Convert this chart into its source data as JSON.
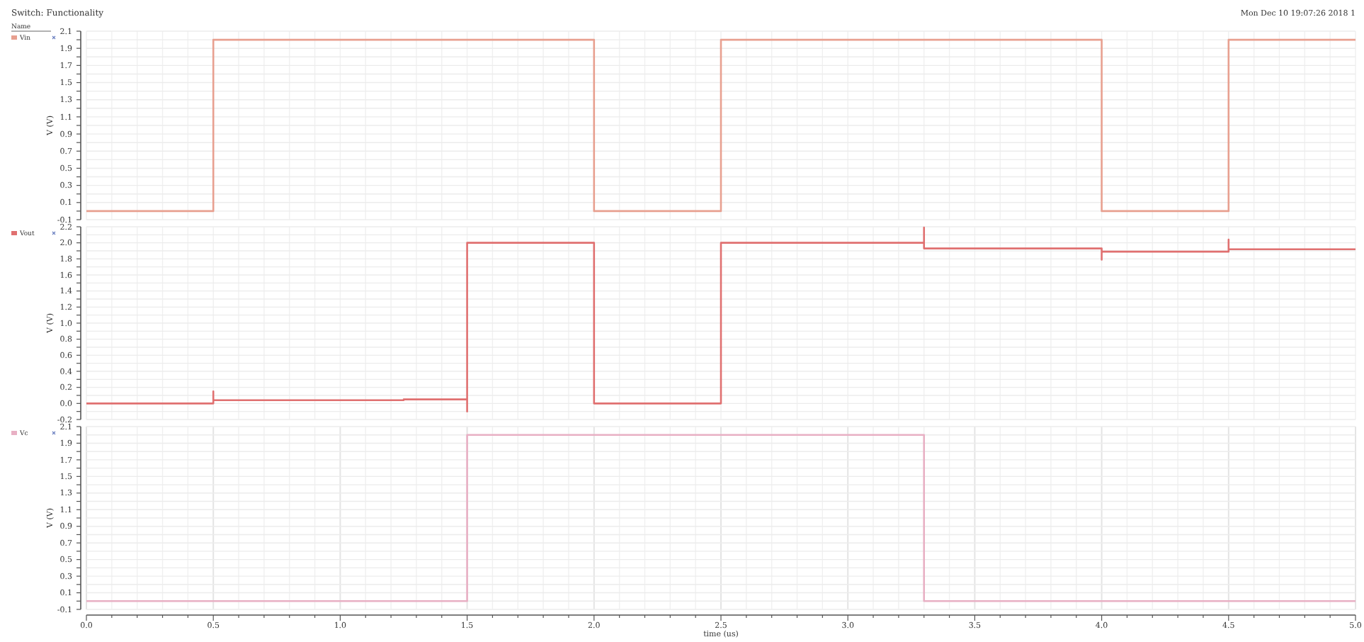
{
  "chart_data": [
    {
      "type": "line",
      "title": "Switch: Functionality",
      "annotations": [
        "Mon Dec 10 19:07:26 2018  1"
      ],
      "legend_title": "Name",
      "ylabel": "V (V)",
      "legend": "top left",
      "grid": true,
      "tick_labels": "y",
      "series": [
        {
          "name": "Vin",
          "color": "#e8a090",
          "x": [
            0,
            0.5,
            0.5,
            2,
            2,
            2.5,
            2.5,
            4,
            4,
            4.5,
            4.5,
            5
          ],
          "values": [
            0,
            0,
            2,
            2,
            0,
            0,
            2,
            2,
            0,
            0,
            2,
            2
          ]
        }
      ],
      "xlim": [
        0,
        5
      ],
      "xticks": [
        0,
        0.1,
        0.2,
        0.3,
        0.4,
        0.5,
        0.6,
        0.7,
        0.8,
        0.9,
        1,
        1.1,
        1.2,
        1.3,
        1.4,
        1.5,
        1.6,
        1.7,
        1.8,
        1.9,
        2,
        2.1,
        2.2,
        2.3,
        2.4,
        2.5,
        2.6,
        2.7,
        2.8,
        2.9,
        3,
        3.1,
        3.2,
        3.3,
        3.4,
        3.5,
        3.6,
        3.7,
        3.8,
        3.9,
        4,
        4.1,
        4.2,
        4.3,
        4.4,
        4.5,
        4.6,
        4.7,
        4.8,
        4.9,
        5
      ],
      "ylim": [
        -0.1,
        2.1
      ],
      "yticks": [
        -0.1,
        {
          "value": 0,
          "label": null
        },
        0.1,
        {
          "value": 0.2,
          "label": null
        },
        0.3,
        {
          "value": 0.4,
          "label": null
        },
        0.5,
        {
          "value": 0.6,
          "label": null
        },
        0.7,
        {
          "value": 0.8,
          "label": null
        },
        0.9,
        {
          "value": 1,
          "label": null
        },
        1.1,
        {
          "value": 1.2,
          "label": null
        },
        1.3,
        {
          "value": 1.4,
          "label": null
        },
        1.5,
        {
          "value": 1.6,
          "label": null
        },
        1.7,
        {
          "value": 1.8,
          "label": null
        },
        1.9,
        {
          "value": 2,
          "label": null
        },
        2.1
      ]
    },
    {
      "type": "line",
      "ylabel": "V (V)",
      "legend": "top left",
      "grid": true,
      "tick_labels": "y",
      "series": [
        {
          "name": "Vout",
          "color": "#e07070",
          "x": [
            0,
            0.5,
            0.5,
            0.5,
            1.25,
            1.25,
            1.5,
            1.5,
            1.5,
            2,
            2,
            2.5,
            2.5,
            3.3,
            3.3,
            3.3,
            4,
            4,
            4,
            4.5,
            4.5,
            4.5,
            5
          ],
          "values": [
            0,
            0,
            0.15,
            0.04,
            0.04,
            0.05,
            0.05,
            -0.1,
            2,
            2,
            0,
            0,
            2,
            2,
            2.19,
            1.93,
            1.93,
            1.79,
            1.89,
            1.89,
            2.04,
            1.92,
            1.92
          ]
        }
      ],
      "xlim": [
        0,
        5
      ],
      "xticks": [
        0,
        0.1,
        0.2,
        0.3,
        0.4,
        0.5,
        0.6,
        0.7,
        0.8,
        0.9,
        1,
        1.1,
        1.2,
        1.3,
        1.4,
        1.5,
        1.6,
        1.7,
        1.8,
        1.9,
        2,
        2.1,
        2.2,
        2.3,
        2.4,
        2.5,
        2.6,
        2.7,
        2.8,
        2.9,
        3,
        3.1,
        3.2,
        3.3,
        3.4,
        3.5,
        3.6,
        3.7,
        3.8,
        3.9,
        4,
        4.1,
        4.2,
        4.3,
        4.4,
        4.5,
        4.6,
        4.7,
        4.8,
        4.9,
        5
      ],
      "ylim": [
        -0.2,
        2.2
      ],
      "yticks": [
        -0.2,
        {
          "value": -0.1,
          "label": null
        },
        {
          "value": 0,
          "label": "0.0"
        },
        {
          "value": 0.1,
          "label": null
        },
        0.2,
        {
          "value": 0.3,
          "label": null
        },
        0.4,
        {
          "value": 0.5,
          "label": null
        },
        0.6,
        {
          "value": 0.7,
          "label": null
        },
        0.8,
        {
          "value": 0.9,
          "label": null
        },
        {
          "value": 1,
          "label": "1.0"
        },
        {
          "value": 1.1,
          "label": null
        },
        1.2,
        {
          "value": 1.3,
          "label": null
        },
        1.4,
        {
          "value": 1.5,
          "label": null
        },
        1.6,
        {
          "value": 1.7,
          "label": null
        },
        1.8,
        {
          "value": 1.9,
          "label": null
        },
        {
          "value": 2,
          "label": "2.0"
        },
        {
          "value": 2.1,
          "label": null
        },
        2.2
      ]
    },
    {
      "type": "line",
      "ylabel": "V (V)",
      "xlabel": "time (us)",
      "legend": "top left",
      "grid": true,
      "series": [
        {
          "name": "Vc",
          "color": "#e8b0c4",
          "x": [
            0,
            1.5,
            1.5,
            3.3,
            3.3,
            5
          ],
          "values": [
            0,
            0,
            2,
            2,
            0,
            0
          ]
        }
      ],
      "xlim": [
        0,
        5
      ],
      "xticks": [
        {
          "value": 0,
          "label": "0.0"
        },
        {
          "value": 0.1,
          "label": null
        },
        {
          "value": 0.2,
          "label": null
        },
        {
          "value": 0.3,
          "label": null
        },
        {
          "value": 0.4,
          "label": null
        },
        0.5,
        {
          "value": 0.6,
          "label": null
        },
        {
          "value": 0.7,
          "label": null
        },
        {
          "value": 0.8,
          "label": null
        },
        {
          "value": 0.9,
          "label": null
        },
        {
          "value": 1,
          "label": "1.0"
        },
        {
          "value": 1.1,
          "label": null
        },
        {
          "value": 1.2,
          "label": null
        },
        {
          "value": 1.3,
          "label": null
        },
        {
          "value": 1.4,
          "label": null
        },
        1.5,
        {
          "value": 1.6,
          "label": null
        },
        {
          "value": 1.7,
          "label": null
        },
        {
          "value": 1.8,
          "label": null
        },
        {
          "value": 1.9,
          "label": null
        },
        {
          "value": 2,
          "label": "2.0"
        },
        {
          "value": 2.1,
          "label": null
        },
        {
          "value": 2.2,
          "label": null
        },
        {
          "value": 2.3,
          "label": null
        },
        {
          "value": 2.4,
          "label": null
        },
        2.5,
        {
          "value": 2.6,
          "label": null
        },
        {
          "value": 2.7,
          "label": null
        },
        {
          "value": 2.8,
          "label": null
        },
        {
          "value": 2.9,
          "label": null
        },
        {
          "value": 3,
          "label": "3.0"
        },
        {
          "value": 3.1,
          "label": null
        },
        {
          "value": 3.2,
          "label": null
        },
        {
          "value": 3.3,
          "label": null
        },
        {
          "value": 3.4,
          "label": null
        },
        3.5,
        {
          "value": 3.6,
          "label": null
        },
        {
          "value": 3.7,
          "label": null
        },
        {
          "value": 3.8,
          "label": null
        },
        {
          "value": 3.9,
          "label": null
        },
        {
          "value": 4,
          "label": "4.0"
        },
        {
          "value": 4.1,
          "label": null
        },
        {
          "value": 4.2,
          "label": null
        },
        {
          "value": 4.3,
          "label": null
        },
        {
          "value": 4.4,
          "label": null
        },
        4.5,
        {
          "value": 4.6,
          "label": null
        },
        {
          "value": 4.7,
          "label": null
        },
        {
          "value": 4.8,
          "label": null
        },
        {
          "value": 4.9,
          "label": null
        },
        {
          "value": 5,
          "label": "5.0"
        }
      ],
      "ylim": [
        -0.1,
        2.1
      ],
      "yticks": [
        -0.1,
        {
          "value": 0,
          "label": null
        },
        0.1,
        {
          "value": 0.2,
          "label": null
        },
        0.3,
        {
          "value": 0.4,
          "label": null
        },
        0.5,
        {
          "value": 0.6,
          "label": null
        },
        0.7,
        {
          "value": 0.8,
          "label": null
        },
        0.9,
        {
          "value": 1,
          "label": null
        },
        1.1,
        {
          "value": 1.2,
          "label": null
        },
        1.3,
        {
          "value": 1.4,
          "label": null
        },
        1.5,
        {
          "value": 1.6,
          "label": null
        },
        1.7,
        {
          "value": 1.8,
          "label": null
        },
        1.9,
        {
          "value": 2,
          "label": null
        },
        2.1
      ]
    }
  ]
}
